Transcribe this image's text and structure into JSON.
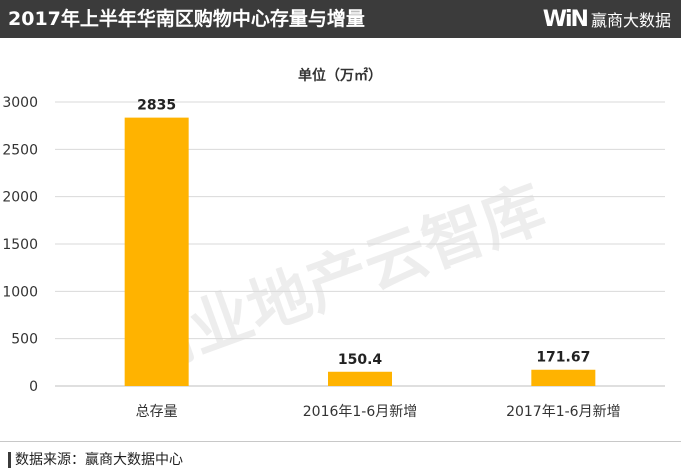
{
  "header": {
    "title": "2017年上半年华南区购物中心存量与增量",
    "logo_mark": "WiN",
    "logo_text": "赢商大数据"
  },
  "watermark": "商业地产云智库",
  "footer": {
    "source": "数据来源：赢商大数据中心"
  },
  "colors": {
    "bar": "#FFB300",
    "header_bg": "#3B3B3B",
    "grid": "#D9D9D9"
  },
  "chart_data": {
    "type": "bar",
    "title": "单位（万㎡）",
    "xlabel": "",
    "ylabel": "",
    "categories": [
      "总存量",
      "2016年1-6月新增",
      "2017年1-6月新增"
    ],
    "values": [
      2835,
      150.4,
      171.67
    ],
    "data_labels": [
      "2835",
      "150.4",
      "171.67"
    ],
    "ylim": [
      0,
      3000
    ],
    "yticks": [
      0,
      500,
      1000,
      1500,
      2000,
      2500,
      3000
    ],
    "grid": true,
    "legend": "none"
  }
}
